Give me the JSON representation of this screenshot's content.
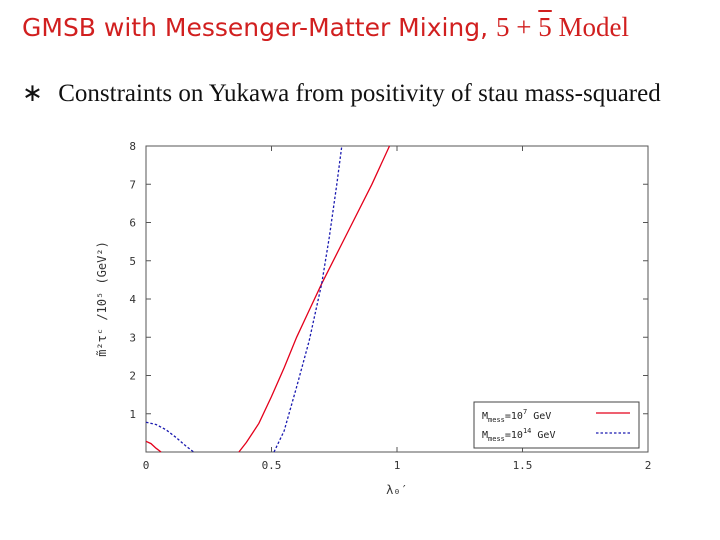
{
  "slide": {
    "title_text": "GMSB with Messenger-Matter Mixing,",
    "title_math_a": "5 + ",
    "title_math_b": "5",
    "title_math_c": " Model",
    "bullet_symbol": "∗",
    "bullet_text": "Constraints on Yukawa from positivity of stau mass-squared"
  },
  "colors": {
    "title": "#d11f1f",
    "series1": "#e4001b",
    "series2": "#1a1ab0"
  },
  "chart_data": {
    "type": "line",
    "title": "",
    "xlabel": "λ₀′",
    "ylabel": "m̃²τᶜ /10⁵ (GeV²)",
    "xlim": [
      0,
      2
    ],
    "ylim": [
      0,
      8
    ],
    "xticks": [
      "0",
      "0.5",
      "1",
      "1.5",
      "2"
    ],
    "yticks": [
      "1",
      "2",
      "3",
      "4",
      "5",
      "6",
      "7",
      "8"
    ],
    "legend_position": "bottom-right",
    "series": [
      {
        "name": "M_mess=10^7 GeV",
        "legend_label": "M",
        "legend_sub": "mess",
        "legend_mid": "=10",
        "legend_sup": "7",
        "legend_unit": " GeV",
        "style": "solid",
        "segments": [
          {
            "x": [
              0,
              0.02,
              0.04,
              0.06
            ],
            "y": [
              0.28,
              0.22,
              0.1,
              0
            ]
          },
          {
            "x": [
              0.37,
              0.4,
              0.45,
              0.5,
              0.55,
              0.6,
              0.65,
              0.7,
              0.8,
              0.9,
              0.97
            ],
            "y": [
              0,
              0.25,
              0.75,
              1.45,
              2.2,
              3.0,
              3.7,
              4.4,
              5.7,
              7.0,
              8.0
            ]
          }
        ]
      },
      {
        "name": "M_mess=10^14 GeV",
        "legend_label": "M",
        "legend_sub": "mess",
        "legend_mid": "=10",
        "legend_sup": "14",
        "legend_unit": " GeV",
        "style": "dashed",
        "segments": [
          {
            "x": [
              0,
              0.04,
              0.08,
              0.12,
              0.16,
              0.19
            ],
            "y": [
              0.78,
              0.72,
              0.58,
              0.38,
              0.15,
              0
            ]
          },
          {
            "x": [
              0.51,
              0.55,
              0.6,
              0.65,
              0.7,
              0.73,
              0.76,
              0.78
            ],
            "y": [
              0,
              0.55,
              1.7,
              2.9,
              4.4,
              5.6,
              7.0,
              8.0
            ]
          }
        ]
      }
    ]
  }
}
